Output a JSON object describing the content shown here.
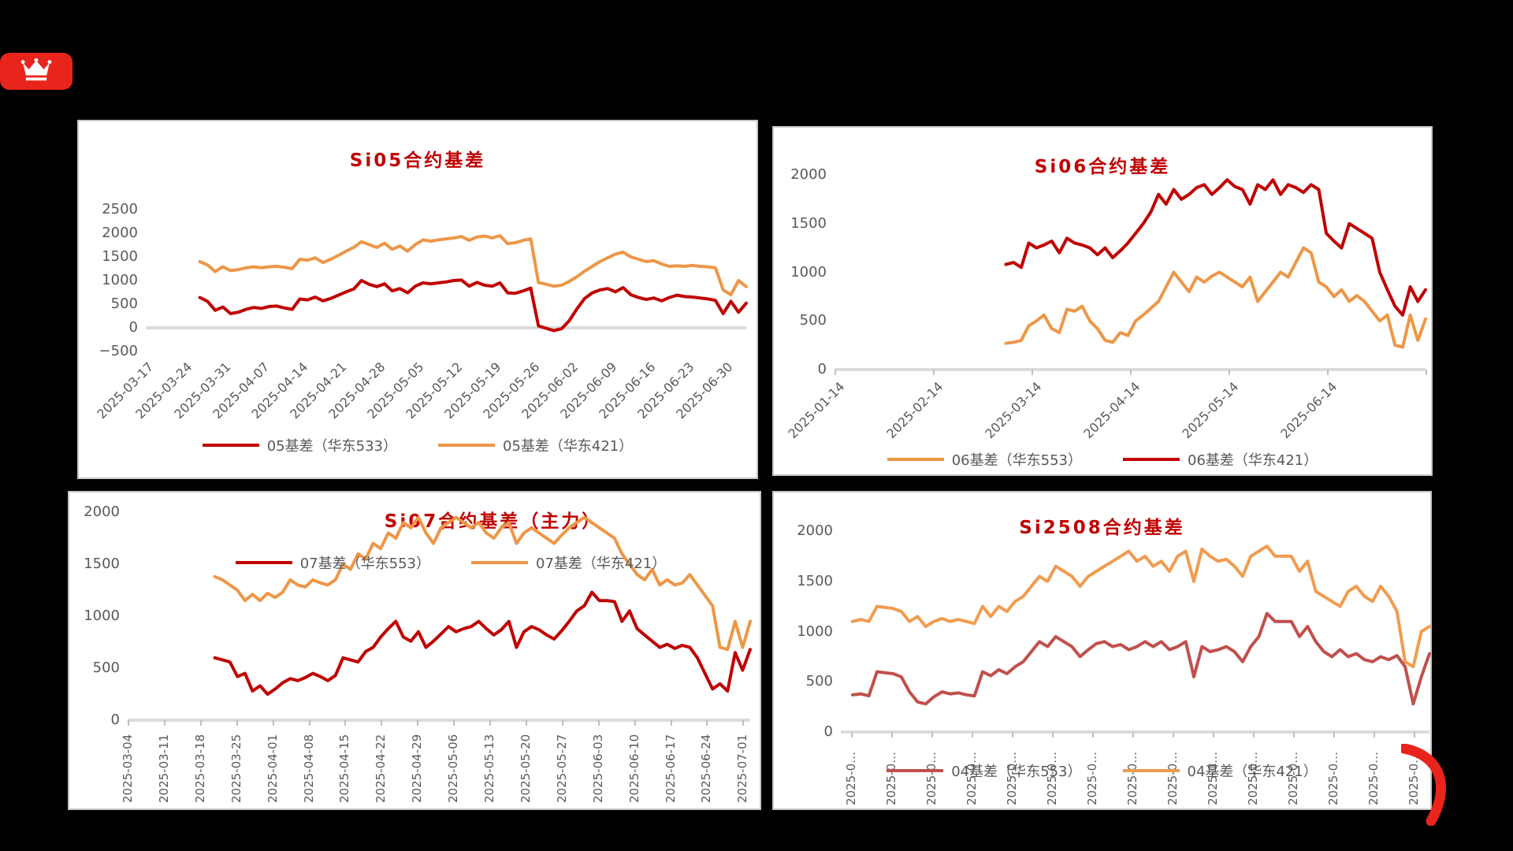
{
  "page": {
    "background": "#000000"
  },
  "logo": {
    "icon": "crown-icon",
    "background": "#E8241C"
  },
  "decor": {
    "arc_color": "#E8241C"
  },
  "styles": {
    "title_color": "#C00000",
    "axis_text_color": "#595959",
    "axis_line_color": "#DBDBDB",
    "panel_bg": "#FFFFFF",
    "panel_border": "#C6C6C6"
  },
  "chart_data": [
    {
      "type": "line",
      "title": "Si05合约基差",
      "ylim": [
        -500,
        2500
      ],
      "yticks": [
        2500,
        2000,
        1500,
        1000,
        500,
        0,
        -500
      ],
      "ytick_labels": [
        "2500",
        "2000",
        "1500",
        "1000",
        "500",
        "0",
        "−500"
      ],
      "x_tick_labels": [
        "2025-03-17",
        "2025-03-24",
        "2025-03-31",
        "2025-04-07",
        "2025-04-14",
        "2025-04-21",
        "2025-04-28",
        "2025-05-05",
        "2025-05-12",
        "2025-05-19",
        "2025-05-26",
        "2025-06-02",
        "2025-06-09",
        "2025-06-16",
        "2025-06-23",
        "2025-06-30"
      ],
      "x_label_style": "diagonal",
      "grid": "zero-line-only",
      "legend_position": "bottom",
      "series": [
        {
          "name": "05基差（华东533）",
          "color": "#C00000",
          "start_frac": 0.09,
          "values": [
            640,
            560,
            370,
            440,
            300,
            330,
            390,
            430,
            410,
            450,
            460,
            420,
            390,
            610,
            590,
            650,
            570,
            620,
            690,
            760,
            820,
            1000,
            920,
            870,
            930,
            780,
            830,
            740,
            880,
            950,
            930,
            950,
            970,
            1000,
            1010,
            880,
            960,
            900,
            880,
            950,
            740,
            730,
            780,
            840,
            40,
            -10,
            -60,
            -20,
            150,
            400,
            620,
            740,
            800,
            830,
            760,
            850,
            700,
            640,
            600,
            630,
            570,
            640,
            690,
            660,
            650,
            630,
            610,
            580,
            300,
            560,
            330,
            520
          ]
        },
        {
          "name": "05基差（华东421）",
          "color": "#ED9748",
          "start_frac": 0.09,
          "values": [
            1400,
            1330,
            1190,
            1290,
            1210,
            1230,
            1270,
            1290,
            1270,
            1290,
            1300,
            1280,
            1250,
            1450,
            1430,
            1480,
            1380,
            1450,
            1530,
            1620,
            1700,
            1820,
            1760,
            1700,
            1790,
            1660,
            1730,
            1620,
            1760,
            1860,
            1830,
            1860,
            1880,
            1900,
            1930,
            1850,
            1920,
            1940,
            1900,
            1950,
            1780,
            1800,
            1850,
            1880,
            960,
            920,
            880,
            900,
            980,
            1080,
            1200,
            1300,
            1400,
            1480,
            1560,
            1600,
            1500,
            1450,
            1400,
            1420,
            1350,
            1300,
            1310,
            1300,
            1320,
            1300,
            1290,
            1270,
            800,
            700,
            1000,
            870
          ]
        }
      ]
    },
    {
      "type": "line",
      "title": "Si06合约基差",
      "ylim": [
        0,
        2000
      ],
      "yticks": [
        2000,
        1500,
        1000,
        500,
        0
      ],
      "ytick_labels": [
        "2000",
        "1500",
        "1000",
        "500",
        "0"
      ],
      "x_tick_labels": [
        "2025-01-14",
        "2025-02-14",
        "2025-03-14",
        "2025-04-14",
        "2025-05-14",
        "2025-06-14"
      ],
      "x_label_style": "diagonal",
      "grid": "zero-line-only",
      "legend_position": "bottom",
      "series": [
        {
          "name": "06基差（华东553）",
          "color": "#ED9748",
          "start_frac": 0.29,
          "values": [
            270,
            280,
            300,
            450,
            500,
            560,
            420,
            380,
            620,
            600,
            650,
            500,
            420,
            300,
            280,
            380,
            350,
            500,
            560,
            630,
            700,
            850,
            1000,
            900,
            800,
            950,
            900,
            960,
            1000,
            950,
            900,
            850,
            950,
            700,
            800,
            900,
            1000,
            950,
            1100,
            1250,
            1200,
            900,
            850,
            750,
            820,
            700,
            760,
            700,
            600,
            500,
            560,
            250,
            230,
            560,
            300,
            520
          ]
        },
        {
          "name": "06基差（华东421）",
          "color": "#C00000",
          "start_frac": 0.29,
          "values": [
            1080,
            1100,
            1050,
            1300,
            1250,
            1280,
            1320,
            1200,
            1350,
            1300,
            1280,
            1250,
            1180,
            1250,
            1150,
            1220,
            1300,
            1400,
            1500,
            1620,
            1800,
            1700,
            1850,
            1750,
            1800,
            1870,
            1900,
            1800,
            1870,
            1950,
            1880,
            1850,
            1700,
            1900,
            1850,
            1950,
            1800,
            1900,
            1870,
            1820,
            1900,
            1850,
            1400,
            1320,
            1250,
            1500,
            1450,
            1400,
            1350,
            1000,
            820,
            650,
            560,
            850,
            700,
            820
          ]
        }
      ]
    },
    {
      "type": "line",
      "title": "Si07合约基差（主力）",
      "ylim": [
        0,
        2000
      ],
      "yticks": [
        2000,
        1500,
        1000,
        500,
        0
      ],
      "ytick_labels": [
        "2000",
        "1500",
        "1000",
        "500",
        "0"
      ],
      "x_tick_labels": [
        "2025-03-04",
        "2025-03-11",
        "2025-03-18",
        "2025-03-25",
        "2025-04-01",
        "2025-04-08",
        "2025-04-15",
        "2025-04-22",
        "2025-04-29",
        "2025-05-06",
        "2025-05-13",
        "2025-05-20",
        "2025-05-27",
        "2025-06-03",
        "2025-06-10",
        "2025-06-17",
        "2025-06-24",
        "2025-07-01"
      ],
      "x_label_style": "vertical",
      "grid": "zero-line-only",
      "legend_position": "inside-top",
      "series": [
        {
          "name": "07基差（华东553）",
          "color": "#C00000",
          "start_frac": 0.14,
          "values": [
            600,
            580,
            560,
            420,
            450,
            280,
            330,
            250,
            300,
            360,
            400,
            380,
            410,
            450,
            420,
            380,
            430,
            600,
            580,
            560,
            660,
            700,
            800,
            880,
            950,
            800,
            760,
            850,
            700,
            760,
            830,
            900,
            850,
            880,
            900,
            950,
            880,
            820,
            870,
            950,
            700,
            850,
            900,
            870,
            820,
            780,
            860,
            950,
            1050,
            1100,
            1230,
            1150,
            1150,
            1140,
            950,
            1050,
            880,
            820,
            760,
            700,
            730,
            690,
            720,
            700,
            600,
            450,
            300,
            350,
            280,
            650,
            480,
            680
          ]
        },
        {
          "name": "07基差（华东421）",
          "color": "#ED9748",
          "start_frac": 0.14,
          "values": [
            1380,
            1350,
            1300,
            1250,
            1150,
            1210,
            1150,
            1220,
            1180,
            1230,
            1350,
            1300,
            1280,
            1350,
            1320,
            1300,
            1350,
            1500,
            1450,
            1600,
            1550,
            1700,
            1650,
            1800,
            1750,
            1900,
            1850,
            1950,
            1800,
            1700,
            1850,
            1900,
            1950,
            1900,
            1850,
            1900,
            1800,
            1750,
            1850,
            1900,
            1700,
            1800,
            1850,
            1800,
            1750,
            1700,
            1780,
            1850,
            1900,
            1950,
            1900,
            1850,
            1800,
            1750,
            1600,
            1500,
            1400,
            1350,
            1450,
            1300,
            1350,
            1300,
            1320,
            1400,
            1300,
            1200,
            1100,
            700,
            680,
            950,
            700,
            950
          ]
        }
      ]
    },
    {
      "type": "line",
      "title": "Si2508合约基差",
      "ylim": [
        0,
        2000
      ],
      "yticks": [
        2000,
        1500,
        1000,
        500,
        0
      ],
      "ytick_labels": [
        "2000",
        "1500",
        "1000",
        "500",
        "0"
      ],
      "x_tick_labels": [
        "2025-0…",
        "2025-0…",
        "2025-0…",
        "2025-0…",
        "2025-0…",
        "2025-0…",
        "2025-0…",
        "2025-0…",
        "2025-0…",
        "2025-0…",
        "2025-0…",
        "2025-0…",
        "2025-0…",
        "2025-0…",
        "2025-0…"
      ],
      "x_label_style": "vertical",
      "grid": "zero-line-only",
      "legend_position": "bottom-overlap",
      "series": [
        {
          "name": "04基差（华东553）",
          "color": "#C0504D",
          "start_frac": 0.02,
          "values": [
            370,
            380,
            360,
            600,
            590,
            580,
            550,
            400,
            300,
            280,
            350,
            400,
            380,
            390,
            370,
            360,
            600,
            560,
            620,
            580,
            650,
            700,
            800,
            900,
            850,
            950,
            900,
            850,
            750,
            820,
            880,
            900,
            850,
            870,
            820,
            850,
            900,
            850,
            900,
            820,
            850,
            900,
            550,
            850,
            800,
            820,
            850,
            800,
            700,
            850,
            950,
            1180,
            1100,
            1100,
            1100,
            950,
            1050,
            900,
            800,
            750,
            820,
            750,
            780,
            720,
            700,
            750,
            720,
            760,
            650,
            280,
            550,
            780
          ]
        },
        {
          "name": "04基差（华东421）",
          "color": "#F09C50",
          "start_frac": 0.02,
          "values": [
            1100,
            1120,
            1100,
            1250,
            1240,
            1230,
            1200,
            1100,
            1150,
            1050,
            1100,
            1130,
            1100,
            1120,
            1100,
            1080,
            1250,
            1150,
            1250,
            1200,
            1300,
            1350,
            1450,
            1550,
            1500,
            1650,
            1600,
            1550,
            1450,
            1550,
            1600,
            1650,
            1700,
            1750,
            1800,
            1700,
            1750,
            1650,
            1700,
            1600,
            1750,
            1800,
            1500,
            1820,
            1750,
            1700,
            1720,
            1650,
            1550,
            1750,
            1800,
            1850,
            1750,
            1750,
            1750,
            1600,
            1700,
            1400,
            1350,
            1300,
            1250,
            1400,
            1450,
            1350,
            1300,
            1450,
            1350,
            1200,
            700,
            650,
            1000,
            1050
          ]
        }
      ]
    }
  ]
}
